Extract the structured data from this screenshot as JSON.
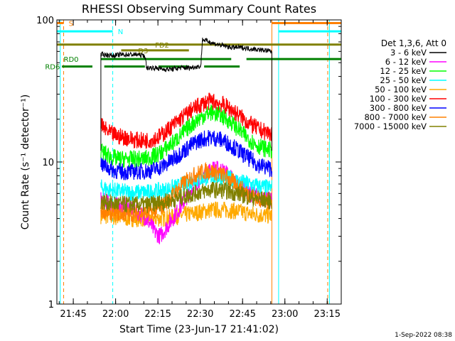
{
  "chart_data": {
    "type": "line",
    "title": "RHESSI Observing Summary Count Rates",
    "xlabel": "Start Time (23-Jun-17 21:41:02)",
    "ylabel": "Count Rate (s⁻¹ detector⁻¹)",
    "yscale": "log",
    "ylim": [
      1,
      100
    ],
    "xlim": [
      -0.03,
      1.65
    ],
    "x_unit": "hours after 21:41:02 (start time)",
    "xticks": [
      {
        "x": 0.067,
        "label": "21:45"
      },
      {
        "x": 0.317,
        "label": "22:00"
      },
      {
        "x": 0.567,
        "label": "22:15"
      },
      {
        "x": 0.817,
        "label": "22:30"
      },
      {
        "x": 1.067,
        "label": "22:45"
      },
      {
        "x": 1.317,
        "label": "23:00"
      },
      {
        "x": 1.567,
        "label": "23:15"
      }
    ],
    "yticks": [
      {
        "y": 1,
        "label": "1"
      },
      {
        "y": 10,
        "label": "10"
      },
      {
        "y": 100,
        "label": "100"
      }
    ],
    "legend_header": "Det 1,3,6, Att 0",
    "legend_position": "right",
    "timestamp": "1-Sep-2022 08:38",
    "data_x_range": [
      0.23,
      1.24
    ],
    "series": [
      {
        "name": "3 - 6 keV",
        "color": "#000000",
        "x": [
          0.23,
          0.26,
          0.3,
          0.35,
          0.4,
          0.45,
          0.49,
          0.5,
          0.55,
          0.6,
          0.65,
          0.7,
          0.75,
          0.8,
          0.82,
          0.83,
          0.9,
          0.95,
          1.0,
          1.05,
          1.1,
          1.15,
          1.2,
          1.24
        ],
        "y": [
          57,
          57,
          56,
          57,
          57,
          57,
          56,
          46,
          46,
          45,
          45,
          46,
          46,
          47,
          47,
          73,
          68,
          66,
          64,
          64,
          63,
          62,
          61,
          60
        ]
      },
      {
        "name": "6 - 12 keV",
        "color": "#ff00ff",
        "x": [
          0.23,
          0.28,
          0.33,
          0.38,
          0.43,
          0.48,
          0.52,
          0.55,
          0.58,
          0.62,
          0.66,
          0.7,
          0.74,
          0.78,
          0.82,
          0.86,
          0.9,
          0.94,
          0.98,
          1.02,
          1.06,
          1.1,
          1.14,
          1.18,
          1.22,
          1.24
        ],
        "y": [
          5.4,
          5.1,
          4.9,
          4.9,
          4.6,
          4.2,
          3.7,
          3.2,
          3.0,
          3.5,
          4.1,
          4.8,
          5.8,
          6.8,
          7.8,
          8.6,
          9.0,
          8.8,
          8.2,
          7.3,
          6.6,
          6.1,
          5.8,
          5.6,
          5.4,
          5.5
        ]
      },
      {
        "name": "12 - 25 keV",
        "color": "#00ff00",
        "x": [
          0.23,
          0.28,
          0.33,
          0.38,
          0.43,
          0.48,
          0.52,
          0.56,
          0.6,
          0.64,
          0.68,
          0.72,
          0.76,
          0.8,
          0.84,
          0.88,
          0.92,
          0.96,
          1.0,
          1.04,
          1.08,
          1.12,
          1.16,
          1.2,
          1.24
        ],
        "y": [
          12,
          11,
          10.5,
          10.5,
          10.5,
          10.5,
          10.8,
          11.2,
          12,
          13.2,
          14.5,
          16.2,
          18.1,
          19.8,
          21.3,
          22.3,
          21.8,
          20.5,
          19,
          17.1,
          15.4,
          14,
          13,
          12.4,
          12.1
        ]
      },
      {
        "name": "25 - 50 keV",
        "color": "#00ffff",
        "x": [
          0.23,
          0.3,
          0.4,
          0.5,
          0.6,
          0.7,
          0.8,
          0.88,
          0.96,
          1.04,
          1.12,
          1.2,
          1.24
        ],
        "y": [
          6.6,
          6.3,
          6.1,
          6.1,
          6.3,
          6.8,
          7.5,
          7.9,
          7.8,
          7.3,
          6.9,
          6.6,
          6.6
        ]
      },
      {
        "name": "50 - 100 keV",
        "color": "#ffaa00",
        "x": [
          0.23,
          0.3,
          0.4,
          0.5,
          0.6,
          0.7,
          0.8,
          0.88,
          0.96,
          1.04,
          1.12,
          1.2,
          1.24
        ],
        "y": [
          4.2,
          4.1,
          4.0,
          4.0,
          4.0,
          4.2,
          4.4,
          4.6,
          4.6,
          4.5,
          4.3,
          4.2,
          4.2
        ]
      },
      {
        "name": "100 - 300 keV",
        "color": "#ff0000",
        "x": [
          0.23,
          0.28,
          0.33,
          0.38,
          0.43,
          0.48,
          0.52,
          0.56,
          0.6,
          0.64,
          0.68,
          0.72,
          0.76,
          0.8,
          0.84,
          0.88,
          0.92,
          0.96,
          1.0,
          1.04,
          1.08,
          1.12,
          1.16,
          1.2,
          1.24
        ],
        "y": [
          18,
          16,
          15.2,
          14.8,
          14.3,
          14.1,
          14.3,
          14.8,
          15.8,
          17.5,
          19.2,
          21,
          23,
          24.5,
          26,
          26.8,
          26.2,
          25,
          23.4,
          21.6,
          19.7,
          18.3,
          17,
          16.3,
          15.8
        ]
      },
      {
        "name": "300 - 800 keV",
        "color": "#0000ff",
        "x": [
          0.23,
          0.28,
          0.33,
          0.38,
          0.43,
          0.48,
          0.52,
          0.56,
          0.6,
          0.64,
          0.68,
          0.72,
          0.76,
          0.8,
          0.84,
          0.88,
          0.92,
          0.96,
          1.0,
          1.04,
          1.08,
          1.12,
          1.16,
          1.2,
          1.24
        ],
        "y": [
          9.8,
          9.0,
          8.6,
          8.5,
          8.6,
          8.6,
          8.7,
          9.0,
          9.4,
          10.1,
          11,
          12,
          13,
          14,
          14.6,
          14.9,
          14.6,
          14,
          13.1,
          12.1,
          11.1,
          10.3,
          9.6,
          9.2,
          9.0
        ]
      },
      {
        "name": "800 - 7000 keV",
        "color": "#ff8000",
        "x": [
          0.23,
          0.3,
          0.4,
          0.5,
          0.56,
          0.6,
          0.64,
          0.68,
          0.72,
          0.76,
          0.8,
          0.84,
          0.88,
          0.92,
          0.96,
          1.0,
          1.04,
          1.08,
          1.12,
          1.16,
          1.2,
          1.24
        ],
        "y": [
          4.6,
          4.4,
          4.3,
          4.4,
          4.6,
          5.0,
          5.6,
          6.3,
          7.1,
          7.8,
          8.3,
          8.6,
          8.6,
          8.4,
          8.0,
          7.4,
          6.8,
          6.2,
          5.8,
          5.5,
          5.3,
          5.2
        ]
      },
      {
        "name": "7000 - 15000 keV",
        "color": "#808000",
        "x": [
          0.23,
          0.3,
          0.4,
          0.5,
          0.6,
          0.7,
          0.8,
          0.88,
          0.96,
          1.04,
          1.12,
          1.2,
          1.24
        ],
        "y": [
          5.3,
          5.1,
          5.0,
          5.0,
          5.2,
          5.6,
          6.1,
          6.4,
          6.3,
          6.0,
          5.6,
          5.4,
          5.3
        ]
      }
    ],
    "flag_lines": [
      {
        "label": "S",
        "color": "#ff8000",
        "label_x": 0.04,
        "y": 95,
        "segments": [
          [
            -0.03,
            0.01
          ],
          [
            1.24,
            1.65
          ]
        ]
      },
      {
        "label": "N",
        "color": "#00ffff",
        "label_x": 0.33,
        "y": 83,
        "segments": [
          [
            -0.03,
            0.3
          ],
          [
            1.28,
            1.65
          ]
        ]
      },
      {
        "label": "FD2",
        "color": "#808000",
        "label_x": 0.55,
        "y": 67,
        "segments": [
          [
            -0.03,
            1.65
          ]
        ]
      },
      {
        "label": "D3",
        "color": "#808000",
        "label_x": 0.45,
        "y": 61,
        "segments": [
          [
            0.35,
            0.75
          ]
        ]
      },
      {
        "label": "RD0",
        "color": "#008000",
        "label_x": 0.01,
        "y": 53,
        "segments": [
          [
            0.23,
            1.0
          ],
          [
            1.09,
            1.65
          ]
        ]
      },
      {
        "label": "RD6",
        "color": "#008000",
        "label_x": -0.1,
        "y": 47,
        "segments": [
          [
            0.0,
            0.18
          ],
          [
            0.25,
            0.49
          ],
          [
            0.57,
            0.75
          ],
          [
            0.84,
            1.05
          ]
        ]
      }
    ],
    "vertical_markers": [
      {
        "x": -0.01,
        "color": "#00ffff",
        "style": "solid"
      },
      {
        "x": 0.01,
        "color": "#ff8000",
        "style": "dashed"
      },
      {
        "x": 0.3,
        "color": "#00ffff",
        "style": "dashed"
      },
      {
        "x": 1.24,
        "color": "#ff8000",
        "style": "solid"
      },
      {
        "x": 1.28,
        "color": "#00ffff",
        "style": "solid"
      },
      {
        "x": 1.57,
        "color": "#ff8000",
        "style": "dashed"
      },
      {
        "x": 1.58,
        "color": "#00ffff",
        "style": "solid"
      }
    ]
  }
}
